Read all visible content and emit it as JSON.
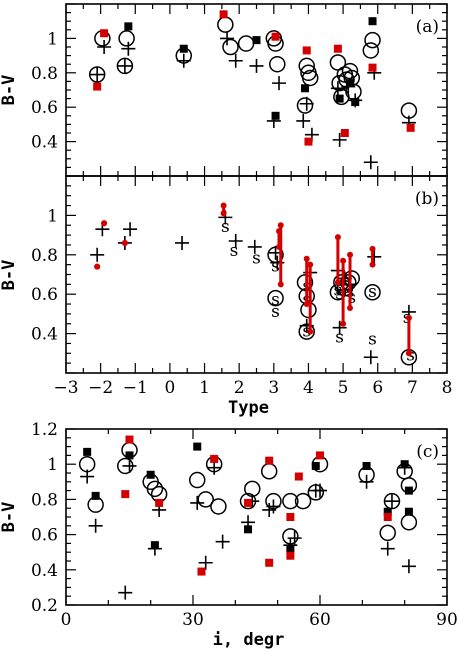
{
  "chart_data": [
    {
      "panel": "a",
      "type": "scatter",
      "label": "(a)",
      "xlim": [
        -3,
        8
      ],
      "ylim": [
        0.2,
        1.2
      ],
      "xticks": [
        -3,
        -2,
        -1,
        0,
        1,
        2,
        3,
        4,
        5,
        6,
        7,
        8
      ],
      "yticks": [
        0.4,
        0.6,
        0.8,
        1.0
      ],
      "ytick_labels": [
        "0.4",
        "0.6",
        "0.8",
        "1"
      ],
      "xlabel": "",
      "ylabel": "B-V",
      "series": [
        {
          "marker": "circle",
          "color": "#000000",
          "points": [
            [
              -2.1,
              0.79
            ],
            [
              -1.95,
              1.0
            ],
            [
              -1.3,
              0.84
            ],
            [
              -1.25,
              1.0
            ],
            [
              0.4,
              0.9
            ],
            [
              1.6,
              1.08
            ],
            [
              1.75,
              0.95
            ],
            [
              2.2,
              0.97
            ],
            [
              3.0,
              1.0
            ],
            [
              3.05,
              0.97
            ],
            [
              3.1,
              0.85
            ],
            [
              3.9,
              0.61
            ],
            [
              3.95,
              0.84
            ],
            [
              4.0,
              0.8
            ],
            [
              4.05,
              0.77
            ],
            [
              4.85,
              0.86
            ],
            [
              4.9,
              0.74
            ],
            [
              4.95,
              0.66
            ],
            [
              5.05,
              0.79
            ],
            [
              5.1,
              0.76
            ],
            [
              5.2,
              0.81
            ],
            [
              5.25,
              0.77
            ],
            [
              5.3,
              0.69
            ],
            [
              5.8,
              0.93
            ],
            [
              5.85,
              0.99
            ],
            [
              6.9,
              0.58
            ]
          ]
        },
        {
          "marker": "plus",
          "color": "#000000",
          "points": [
            [
              -2.1,
              0.79
            ],
            [
              -1.9,
              0.95
            ],
            [
              -1.3,
              0.84
            ],
            [
              -1.2,
              0.94
            ],
            [
              0.4,
              0.87
            ],
            [
              1.65,
              1.0
            ],
            [
              1.9,
              0.87
            ],
            [
              2.5,
              0.84
            ],
            [
              3.15,
              0.74
            ],
            [
              3.0,
              0.52
            ],
            [
              3.85,
              0.52
            ],
            [
              3.95,
              0.62
            ],
            [
              4.1,
              0.44
            ],
            [
              4.85,
              0.71
            ],
            [
              4.9,
              0.41
            ],
            [
              5.15,
              0.72
            ],
            [
              5.35,
              0.64
            ],
            [
              5.8,
              0.28
            ],
            [
              5.9,
              0.8
            ],
            [
              6.9,
              0.51
            ]
          ]
        },
        {
          "marker": "square",
          "color": "#000000",
          "points": [
            [
              -1.2,
              1.07
            ],
            [
              0.4,
              0.94
            ],
            [
              2.5,
              0.99
            ],
            [
              3.05,
              0.55
            ],
            [
              3.9,
              0.71
            ],
            [
              4.9,
              0.65
            ],
            [
              5.2,
              0.74
            ],
            [
              5.35,
              0.63
            ],
            [
              5.85,
              1.1
            ]
          ]
        },
        {
          "marker": "square",
          "color": "#d40000",
          "points": [
            [
              -2.1,
              0.72
            ],
            [
              -1.9,
              1.03
            ],
            [
              1.55,
              1.14
            ],
            [
              3.05,
              1.01
            ],
            [
              3.95,
              0.93
            ],
            [
              4.0,
              0.4
            ],
            [
              4.85,
              0.94
            ],
            [
              5.05,
              0.45
            ],
            [
              5.85,
              0.83
            ],
            [
              6.95,
              0.48
            ]
          ]
        }
      ]
    },
    {
      "panel": "b",
      "type": "scatter",
      "label": "(b)",
      "xlim": [
        -3,
        8
      ],
      "ylim": [
        0.2,
        1.2
      ],
      "xticks": [
        -3,
        -2,
        -1,
        0,
        1,
        2,
        3,
        4,
        5,
        6,
        7,
        8
      ],
      "xtick_labels": [
        "−3",
        "−2",
        "−1",
        "0",
        "1",
        "2",
        "3",
        "4",
        "5",
        "6",
        "7",
        "8"
      ],
      "yticks": [
        0.4,
        0.6,
        0.8,
        1.0
      ],
      "ytick_labels": [
        "0.4",
        "0.6",
        "0.8",
        "1"
      ],
      "xlabel": "Type",
      "ylabel": "B-V",
      "series": [
        {
          "marker": "plus",
          "color": "#000000",
          "points": [
            [
              -2.1,
              0.8
            ],
            [
              -1.95,
              0.93
            ],
            [
              -1.3,
              0.86
            ],
            [
              -1.15,
              0.93
            ],
            [
              0.35,
              0.86
            ],
            [
              1.6,
              0.99
            ],
            [
              1.9,
              0.87
            ],
            [
              2.45,
              0.84
            ],
            [
              3.05,
              0.81
            ],
            [
              3.1,
              0.76
            ],
            [
              3.95,
              0.44
            ],
            [
              4.05,
              0.71
            ],
            [
              4.85,
              0.72
            ],
            [
              4.9,
              0.43
            ],
            [
              5.05,
              0.68
            ],
            [
              5.2,
              0.65
            ],
            [
              5.8,
              0.28
            ],
            [
              5.9,
              0.79
            ],
            [
              6.9,
              0.51
            ]
          ]
        },
        {
          "marker": "circle",
          "color": "#000000",
          "points": [
            [
              3.05,
              0.8
            ],
            [
              3.05,
              0.58
            ],
            [
              3.9,
              0.66
            ],
            [
              3.95,
              0.41
            ],
            [
              3.95,
              0.59
            ],
            [
              4.0,
              0.52
            ],
            [
              4.85,
              0.61
            ],
            [
              4.95,
              0.66
            ],
            [
              5.05,
              0.63
            ],
            [
              5.15,
              0.66
            ],
            [
              5.25,
              0.68
            ],
            [
              5.85,
              0.61
            ],
            [
              6.9,
              0.28
            ]
          ]
        },
        {
          "marker": "text",
          "text": "s",
          "color": "#000000",
          "points": [
            [
              1.6,
              0.94
            ],
            [
              1.85,
              0.82
            ],
            [
              2.5,
              0.78
            ],
            [
              3.05,
              0.74
            ],
            [
              3.05,
              0.57
            ],
            [
              3.05,
              0.51
            ],
            [
              3.95,
              0.64
            ],
            [
              3.95,
              0.57
            ],
            [
              3.95,
              0.41
            ],
            [
              4.85,
              0.62
            ],
            [
              4.9,
              0.6
            ],
            [
              4.9,
              0.38
            ],
            [
              5.05,
              0.63
            ],
            [
              5.2,
              0.61
            ],
            [
              5.25,
              0.58
            ],
            [
              5.85,
              0.61
            ],
            [
              5.85,
              0.37
            ],
            [
              6.85,
              0.48
            ],
            [
              6.95,
              0.29
            ]
          ]
        },
        {
          "marker": "redbar",
          "color": "#d40000",
          "points": [
            [
              -2.1,
              0.74,
              0.74
            ],
            [
              -1.9,
              0.96,
              0.96
            ],
            [
              -1.3,
              0.86,
              0.86
            ],
            [
              1.55,
              1.01,
              1.05
            ],
            [
              3.15,
              0.84,
              0.92
            ],
            [
              3.2,
              0.65,
              0.95
            ],
            [
              3.95,
              0.55,
              0.78
            ],
            [
              4.05,
              0.41,
              0.75
            ],
            [
              4.85,
              0.66,
              0.89
            ],
            [
              5.0,
              0.45,
              0.77
            ],
            [
              5.2,
              0.53,
              0.8
            ],
            [
              5.85,
              0.75,
              0.83
            ],
            [
              6.9,
              0.3,
              0.48
            ]
          ]
        }
      ]
    },
    {
      "panel": "c",
      "type": "scatter",
      "label": "(c)",
      "xlim": [
        0,
        90
      ],
      "ylim": [
        0.2,
        1.2
      ],
      "xticks": [
        0,
        30,
        60,
        90
      ],
      "yticks": [
        0.2,
        0.4,
        0.6,
        0.8,
        1.0,
        1.2
      ],
      "ytick_labels": [
        "0.2",
        "0.4",
        "0.6",
        "0.8",
        "1",
        "1.2"
      ],
      "xlabel": "i, degr",
      "ylabel": "B-V",
      "series": [
        {
          "marker": "circle",
          "color": "#000000",
          "points": [
            [
              5,
              1.0
            ],
            [
              7,
              0.77
            ],
            [
              14,
              0.99
            ],
            [
              15,
              1.08
            ],
            [
              20,
              0.9
            ],
            [
              21,
              0.86
            ],
            [
              22,
              0.83
            ],
            [
              31,
              0.91
            ],
            [
              33,
              0.8
            ],
            [
              35,
              1.0
            ],
            [
              36,
              0.76
            ],
            [
              43,
              0.79
            ],
            [
              44,
              0.86
            ],
            [
              48,
              0.96
            ],
            [
              49,
              0.79
            ],
            [
              53,
              0.59
            ],
            [
              53,
              0.79
            ],
            [
              56,
              0.79
            ],
            [
              59,
              0.84
            ],
            [
              60,
              1.0
            ],
            [
              71,
              0.94
            ],
            [
              76,
              0.61
            ],
            [
              77,
              0.79
            ],
            [
              80,
              0.96
            ],
            [
              81,
              0.88
            ],
            [
              81,
              0.67
            ]
          ]
        },
        {
          "marker": "plus",
          "color": "#000000",
          "points": [
            [
              5,
              0.93
            ],
            [
              7,
              0.65
            ],
            [
              14,
              0.27
            ],
            [
              15,
              0.99
            ],
            [
              21,
              0.52
            ],
            [
              22,
              0.74
            ],
            [
              31,
              0.78
            ],
            [
              33,
              0.44
            ],
            [
              35,
              0.98
            ],
            [
              37,
              0.56
            ],
            [
              43,
              0.67
            ],
            [
              44,
              0.79
            ],
            [
              48,
              0.74
            ],
            [
              49,
              0.76
            ],
            [
              53,
              0.54
            ],
            [
              54,
              0.58
            ],
            [
              59,
              0.85
            ],
            [
              60,
              0.85
            ],
            [
              71,
              0.9
            ],
            [
              76,
              0.52
            ],
            [
              77,
              0.79
            ],
            [
              80,
              0.98
            ],
            [
              81,
              0.42
            ]
          ]
        },
        {
          "marker": "square",
          "color": "#000000",
          "points": [
            [
              5,
              1.07
            ],
            [
              7,
              0.82
            ],
            [
              15,
              1.05
            ],
            [
              20,
              0.94
            ],
            [
              21,
              0.54
            ],
            [
              31,
              1.1
            ],
            [
              43,
              0.63
            ],
            [
              53,
              0.52
            ],
            [
              59,
              0.99
            ],
            [
              71,
              0.99
            ],
            [
              76,
              0.73
            ],
            [
              80,
              1.0
            ],
            [
              81,
              0.85
            ],
            [
              81,
              0.73
            ]
          ]
        },
        {
          "marker": "square",
          "color": "#d40000",
          "points": [
            [
              14,
              0.83
            ],
            [
              15,
              1.14
            ],
            [
              22,
              0.78
            ],
            [
              32,
              0.39
            ],
            [
              35,
              1.03
            ],
            [
              43,
              0.78
            ],
            [
              48,
              1.02
            ],
            [
              48,
              0.44
            ],
            [
              53,
              0.7
            ],
            [
              53,
              0.48
            ],
            [
              55,
              0.93
            ],
            [
              60,
              1.05
            ],
            [
              76,
              0.7
            ]
          ]
        }
      ]
    }
  ]
}
